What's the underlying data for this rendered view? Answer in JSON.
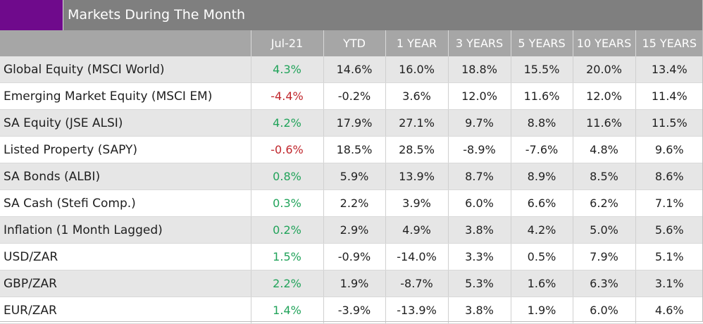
{
  "header": {
    "title": "Markets During The Month",
    "accent_color": "#6f0a8c",
    "bar_color": "#7f7f7f"
  },
  "colors": {
    "positive": "#21a35a",
    "negative": "#c0262c"
  },
  "chart_data": {
    "type": "table",
    "title": "Markets During The Month",
    "columns": [
      "",
      "Jul-21",
      "YTD",
      "1 YEAR",
      "3 YEARS",
      "5 YEARS",
      "10 YEARS",
      "15 YEARS"
    ],
    "rows": [
      {
        "label": "Global Equity (MSCI World)",
        "values": [
          "4.3%",
          "14.6%",
          "16.0%",
          "18.8%",
          "15.5%",
          "20.0%",
          "13.4%"
        ]
      },
      {
        "label": "Emerging Market Equity (MSCI EM)",
        "values": [
          "-4.4%",
          "-0.2%",
          "3.6%",
          "12.0%",
          "11.6%",
          "12.0%",
          "11.4%"
        ]
      },
      {
        "label": "SA Equity (JSE ALSI)",
        "values": [
          "4.2%",
          "17.9%",
          "27.1%",
          "9.7%",
          "8.8%",
          "11.6%",
          "11.5%"
        ]
      },
      {
        "label": "Listed Property (SAPY)",
        "values": [
          "-0.6%",
          "18.5%",
          "28.5%",
          "-8.9%",
          "-7.6%",
          "4.8%",
          "9.6%"
        ]
      },
      {
        "label": "SA Bonds (ALBI)",
        "values": [
          "0.8%",
          "5.9%",
          "13.9%",
          "8.7%",
          "8.9%",
          "8.5%",
          "8.6%"
        ]
      },
      {
        "label": "SA Cash (Stefi Comp.)",
        "values": [
          "0.3%",
          "2.2%",
          "3.9%",
          "6.0%",
          "6.6%",
          "6.2%",
          "7.1%"
        ]
      },
      {
        "label": "Inflation (1 Month Lagged)",
        "values": [
          "0.2%",
          "2.9%",
          "4.9%",
          "3.8%",
          "4.2%",
          "5.0%",
          "5.6%"
        ]
      },
      {
        "label": "USD/ZAR",
        "values": [
          "1.5%",
          "-0.9%",
          "-14.0%",
          "3.3%",
          "0.5%",
          "7.9%",
          "5.1%"
        ]
      },
      {
        "label": "GBP/ZAR",
        "values": [
          "2.2%",
          "1.9%",
          "-8.7%",
          "5.3%",
          "1.6%",
          "6.3%",
          "3.1%"
        ]
      },
      {
        "label": "EUR/ZAR",
        "values": [
          "1.4%",
          "-3.9%",
          "-13.9%",
          "3.8%",
          "1.9%",
          "6.0%",
          "4.6%"
        ]
      }
    ]
  }
}
